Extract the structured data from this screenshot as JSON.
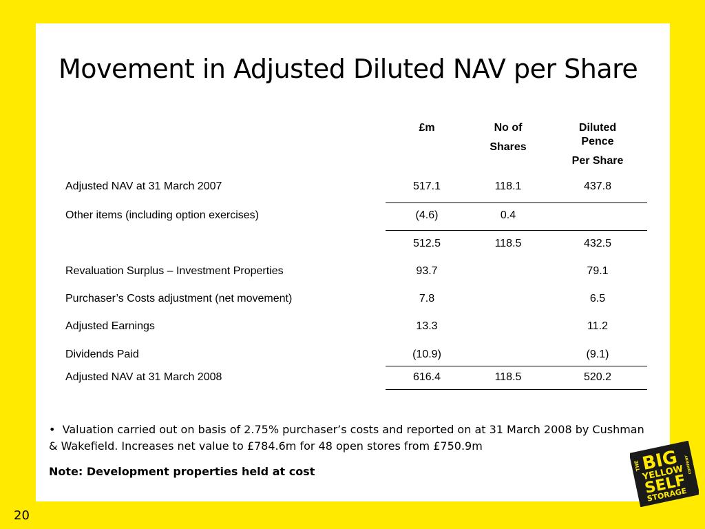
{
  "slide": {
    "title": "Movement in Adjusted Diluted NAV per Share",
    "page_number": "20"
  },
  "table": {
    "headers": {
      "gbp_m": "£m",
      "shares_line1": "No of",
      "shares_line2": "Shares",
      "pence_line1": "Diluted",
      "pence_line2": "Pence",
      "pence_line3": "Per Share"
    },
    "rows": [
      {
        "label": "Adjusted NAV at 31 March 2007",
        "m": "517.1",
        "shares": "118.1",
        "pence": "437.8"
      },
      {
        "label": "Other items (including option exercises)",
        "m": "(4.6)",
        "shares": "0.4",
        "pence": ""
      },
      {
        "label": "",
        "m": "512.5",
        "shares": "118.5",
        "pence": "432.5"
      },
      {
        "label": "Revaluation Surplus – Investment Properties",
        "m": "93.7",
        "shares": "",
        "pence": "79.1"
      },
      {
        "label": "Purchaser’s Costs adjustment (net movement)",
        "m": "7.8",
        "shares": "",
        "pence": "6.5"
      },
      {
        "label": "Adjusted Earnings",
        "m": "13.3",
        "shares": "",
        "pence": "11.2"
      },
      {
        "label": "Dividends Paid",
        "m": "(10.9)",
        "shares": "",
        "pence": "(9.1)"
      },
      {
        "label": "Adjusted NAV at 31 March 2008",
        "m": "616.4",
        "shares": "118.5",
        "pence": "520.2"
      }
    ]
  },
  "notes": {
    "bullet": "Valuation carried out on basis of 2.75% purchaser’s costs and reported on at 31 March 2008 by Cushman & Wakefield. Increases net value to £784.6m for 48 open stores from £750.9m",
    "bold_note": "Note: Development properties held at cost"
  },
  "logo": {
    "line_the": "THE",
    "line_big": "BIG",
    "line_yellow": "YELLOW",
    "line_self": "SELF",
    "line_storage": "STORAGE",
    "line_company": "COMPANY"
  },
  "colors": {
    "background": "#FFEA00",
    "panel": "#FFFFFF",
    "logo_bg": "#1A1A1A",
    "logo_fg": "#FFEA00"
  }
}
